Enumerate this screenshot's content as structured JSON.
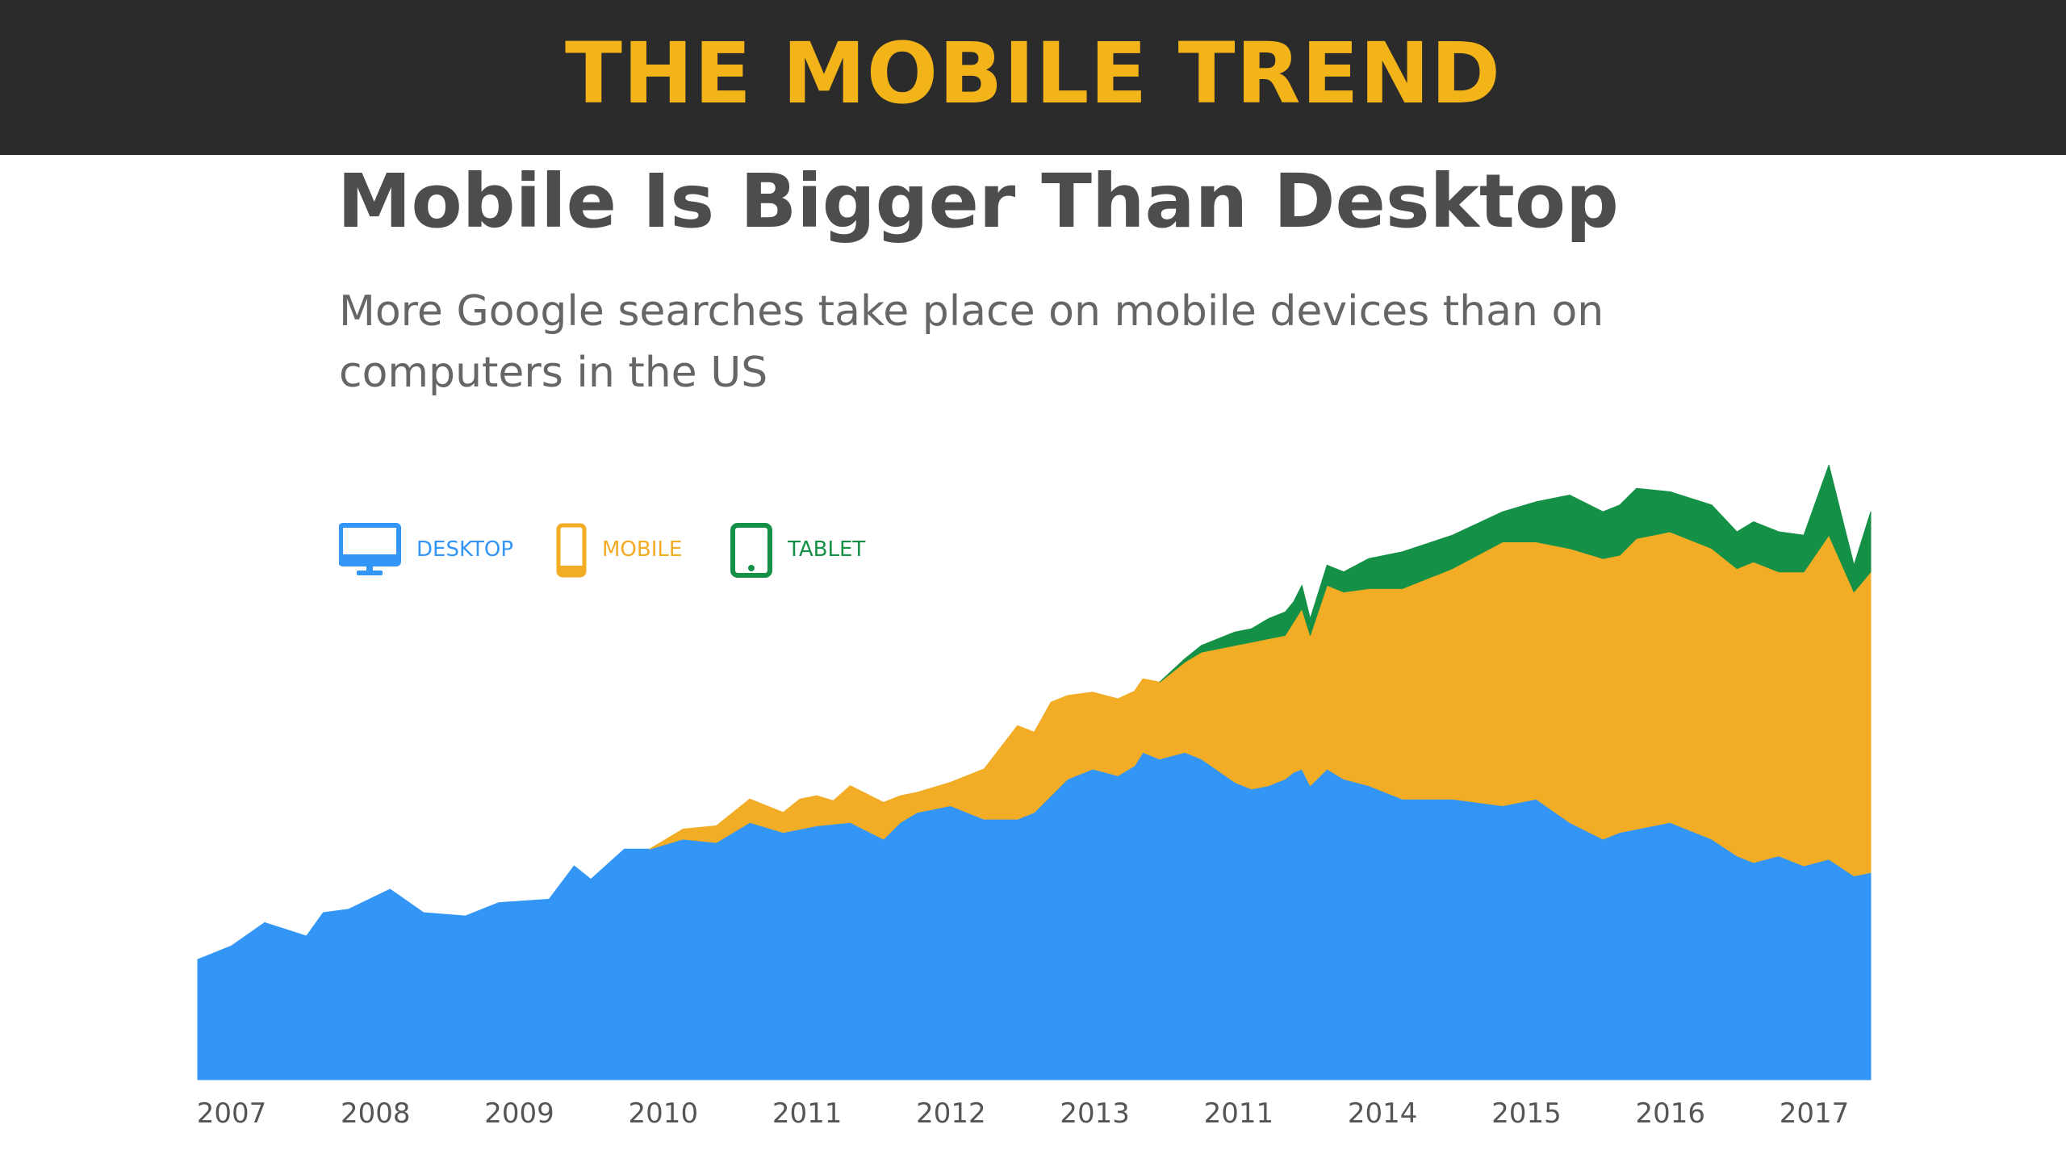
{
  "banner": {
    "title": "THE MOBILE TREND",
    "title_color": "#f2b418",
    "background": "#2b2b2b"
  },
  "chart_data": {
    "type": "area",
    "stacked": true,
    "title": "Mobile Is Bigger Than Desktop",
    "subtitle": "More Google searches take place on mobile devices than on computers in the US",
    "x_tick_labels": [
      "2007",
      "2008",
      "2009",
      "2010",
      "2011",
      "2012",
      "2013",
      "2011",
      "2014",
      "2015",
      "2016",
      "2017"
    ],
    "legend_position": "top-left",
    "grid": false,
    "ylim": [
      0,
      100
    ],
    "series": [
      {
        "name": "DESKTOP",
        "icon": "desktop-monitor-icon",
        "color": "#3396f7",
        "points": [
          [
            0.0,
            18.0
          ],
          [
            0.02,
            20.0
          ],
          [
            0.04,
            23.5
          ],
          [
            0.065,
            21.5
          ],
          [
            0.075,
            25.0
          ],
          [
            0.09,
            25.5
          ],
          [
            0.115,
            28.5
          ],
          [
            0.135,
            25.0
          ],
          [
            0.16,
            24.5
          ],
          [
            0.18,
            26.5
          ],
          [
            0.21,
            27.0
          ],
          [
            0.225,
            32.0
          ],
          [
            0.235,
            30.0
          ],
          [
            0.255,
            34.5
          ],
          [
            0.27,
            34.5
          ],
          [
            0.29,
            36.0
          ],
          [
            0.31,
            35.5
          ],
          [
            0.33,
            38.5
          ],
          [
            0.35,
            37.0
          ],
          [
            0.37,
            38.0
          ],
          [
            0.39,
            38.5
          ],
          [
            0.41,
            36.0
          ],
          [
            0.42,
            38.5
          ],
          [
            0.43,
            40.0
          ],
          [
            0.45,
            41.0
          ],
          [
            0.47,
            39.0
          ],
          [
            0.49,
            39.0
          ],
          [
            0.5,
            40.0
          ],
          [
            0.52,
            45.0
          ],
          [
            0.535,
            46.5
          ],
          [
            0.55,
            45.5
          ],
          [
            0.56,
            47.0
          ],
          [
            0.565,
            49.0
          ],
          [
            0.575,
            48.0
          ],
          [
            0.59,
            49.0
          ],
          [
            0.6,
            48.0
          ],
          [
            0.62,
            44.5
          ],
          [
            0.63,
            43.5
          ],
          [
            0.64,
            44.0
          ],
          [
            0.65,
            45.0
          ],
          [
            0.655,
            46.0
          ],
          [
            0.66,
            46.5
          ],
          [
            0.665,
            44.0
          ],
          [
            0.675,
            46.5
          ],
          [
            0.685,
            45.0
          ],
          [
            0.7,
            44.0
          ],
          [
            0.72,
            42.0
          ],
          [
            0.75,
            42.0
          ],
          [
            0.78,
            41.0
          ],
          [
            0.8,
            42.0
          ],
          [
            0.82,
            38.5
          ],
          [
            0.84,
            36.0
          ],
          [
            0.85,
            37.0
          ],
          [
            0.86,
            37.5
          ],
          [
            0.88,
            38.5
          ],
          [
            0.905,
            36.0
          ],
          [
            0.92,
            33.5
          ],
          [
            0.93,
            32.5
          ],
          [
            0.945,
            33.5
          ],
          [
            0.96,
            32.0
          ],
          [
            0.975,
            33.0
          ],
          [
            0.99,
            30.5
          ],
          [
            1.0,
            31.0
          ]
        ]
      },
      {
        "name": "MOBILE",
        "icon": "mobile-phone-icon",
        "color": "#f2ac25",
        "points": [
          [
            0.27,
            0.0
          ],
          [
            0.29,
            1.5
          ],
          [
            0.31,
            2.5
          ],
          [
            0.33,
            3.5
          ],
          [
            0.35,
            3.0
          ],
          [
            0.36,
            4.5
          ],
          [
            0.37,
            4.5
          ],
          [
            0.38,
            3.5
          ],
          [
            0.39,
            5.5
          ],
          [
            0.41,
            5.5
          ],
          [
            0.42,
            4.0
          ],
          [
            0.43,
            3.0
          ],
          [
            0.45,
            3.5
          ],
          [
            0.47,
            7.5
          ],
          [
            0.49,
            14.0
          ],
          [
            0.5,
            12.0
          ],
          [
            0.51,
            14.0
          ],
          [
            0.52,
            12.5
          ],
          [
            0.535,
            11.5
          ],
          [
            0.55,
            11.5
          ],
          [
            0.565,
            11.0
          ],
          [
            0.575,
            11.5
          ],
          [
            0.59,
            13.5
          ],
          [
            0.6,
            16.0
          ],
          [
            0.62,
            20.5
          ],
          [
            0.63,
            22.0
          ],
          [
            0.64,
            22.0
          ],
          [
            0.65,
            21.5
          ],
          [
            0.655,
            22.5
          ],
          [
            0.66,
            24.0
          ],
          [
            0.665,
            22.5
          ],
          [
            0.675,
            27.5
          ],
          [
            0.685,
            28.0
          ],
          [
            0.7,
            29.5
          ],
          [
            0.72,
            31.5
          ],
          [
            0.75,
            34.5
          ],
          [
            0.78,
            39.5
          ],
          [
            0.8,
            38.5
          ],
          [
            0.82,
            41.0
          ],
          [
            0.84,
            42.0
          ],
          [
            0.85,
            41.5
          ],
          [
            0.86,
            43.5
          ],
          [
            0.88,
            43.5
          ],
          [
            0.905,
            43.5
          ],
          [
            0.92,
            43.0
          ],
          [
            0.93,
            45.0
          ],
          [
            0.945,
            42.5
          ],
          [
            0.96,
            44.0
          ],
          [
            0.975,
            48.5
          ],
          [
            0.99,
            42.5
          ],
          [
            1.0,
            45.0
          ]
        ]
      },
      {
        "name": "TABLET",
        "icon": "tablet-icon",
        "color": "#149147",
        "points": [
          [
            0.575,
            0.0
          ],
          [
            0.59,
            0.5
          ],
          [
            0.6,
            1.0
          ],
          [
            0.62,
            2.0
          ],
          [
            0.63,
            2.0
          ],
          [
            0.64,
            3.0
          ],
          [
            0.65,
            3.5
          ],
          [
            0.655,
            3.0
          ],
          [
            0.66,
            3.5
          ],
          [
            0.665,
            2.5
          ],
          [
            0.675,
            3.0
          ],
          [
            0.685,
            3.0
          ],
          [
            0.7,
            4.5
          ],
          [
            0.72,
            5.5
          ],
          [
            0.75,
            5.0
          ],
          [
            0.78,
            4.5
          ],
          [
            0.8,
            6.0
          ],
          [
            0.82,
            8.0
          ],
          [
            0.84,
            7.0
          ],
          [
            0.85,
            7.5
          ],
          [
            0.86,
            7.5
          ],
          [
            0.88,
            6.0
          ],
          [
            0.905,
            6.5
          ],
          [
            0.92,
            5.5
          ],
          [
            0.93,
            6.0
          ],
          [
            0.945,
            6.0
          ],
          [
            0.96,
            5.5
          ],
          [
            0.975,
            10.5
          ],
          [
            0.99,
            4.0
          ],
          [
            1.0,
            9.0
          ]
        ]
      }
    ]
  }
}
